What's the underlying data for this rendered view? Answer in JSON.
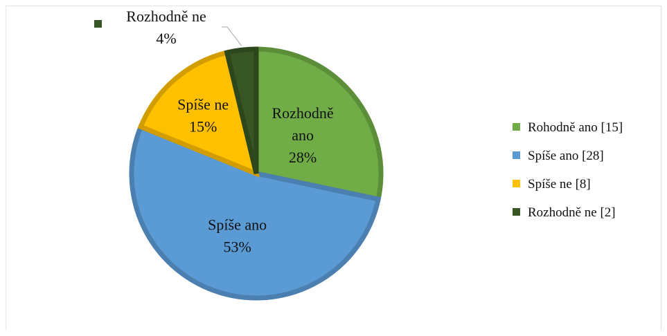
{
  "chart_data": {
    "type": "pie",
    "title": "",
    "slices": [
      {
        "legend": "Rohodně ano [15]",
        "label": "Rozhodně ano",
        "percent_label": "28%",
        "value": 15,
        "color": "#70ad47"
      },
      {
        "legend": "Spíše ano [28]",
        "label": "Spíše ano",
        "percent_label": "53%",
        "value": 28,
        "color": "#5b9bd5"
      },
      {
        "legend": "Spíše ne [8]",
        "label": "Spíše ne",
        "percent_label": "15%",
        "value": 8,
        "color": "#ffc000"
      },
      {
        "legend": "Rozhodně ne [2]",
        "label": "Rozhodně ne",
        "percent_label": "4%",
        "value": 2,
        "color": "#375623"
      }
    ],
    "legend_position": "right"
  }
}
